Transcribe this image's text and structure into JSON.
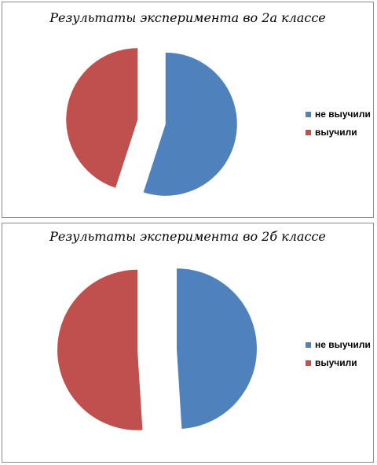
{
  "colors": {
    "blue": "#4f81bd",
    "red": "#c0504d"
  },
  "chart_data": [
    {
      "type": "pie",
      "title": "Результаты эксперимента во 2а классе",
      "categories": [
        "не выучили",
        "выучили"
      ],
      "values": [
        55,
        45
      ],
      "colors": [
        "#4f81bd",
        "#c0504d"
      ],
      "exploded": true,
      "legend": "right"
    },
    {
      "type": "pie",
      "title": "Результаты эксперимента во 2б классе",
      "categories": [
        "не выучили",
        "выучили"
      ],
      "values": [
        49,
        51
      ],
      "colors": [
        "#4f81bd",
        "#c0504d"
      ],
      "exploded": true,
      "legend": "right"
    }
  ]
}
